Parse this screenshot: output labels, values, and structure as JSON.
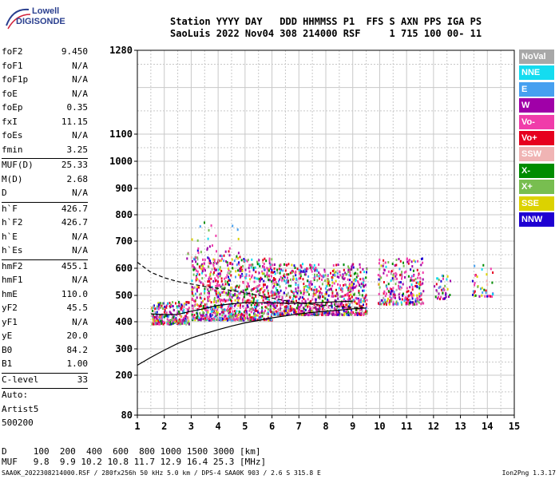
{
  "logo": {
    "line1": "Lowell",
    "line2": "DIGISONDE",
    "color": "#2a3f8f"
  },
  "header": {
    "line1": "Station YYYY DAY   DDD HHMMSS P1  FFS S AXN PPS IGA PS",
    "line2": "SaoLuis 2022 Nov04 308 214000 RSF     1 715 100 00- 11"
  },
  "params": [
    {
      "k": "foF2",
      "v": "9.450"
    },
    {
      "k": "foF1",
      "v": "N/A"
    },
    {
      "k": "foF1p",
      "v": "N/A"
    },
    {
      "k": "foE",
      "v": "N/A"
    },
    {
      "k": "foEp",
      "v": "0.35"
    },
    {
      "k": "fxI",
      "v": "11.15"
    },
    {
      "k": "foEs",
      "v": "N/A"
    },
    {
      "k": "fmin",
      "v": "3.25"
    },
    {
      "k": "MUF(D)",
      "v": "25.33"
    },
    {
      "k": "M(D)",
      "v": "2.68"
    },
    {
      "k": "D",
      "v": "N/A"
    },
    {
      "k": "h`F",
      "v": "426.7"
    },
    {
      "k": "h`F2",
      "v": "426.7"
    },
    {
      "k": "h`E",
      "v": "N/A"
    },
    {
      "k": "h`Es",
      "v": "N/A"
    },
    {
      "k": "hmF2",
      "v": "455.1"
    },
    {
      "k": "hmF1",
      "v": "N/A"
    },
    {
      "k": "hmE",
      "v": "110.0"
    },
    {
      "k": "yF2",
      "v": "45.5"
    },
    {
      "k": "yF1",
      "v": "N/A"
    },
    {
      "k": "yE",
      "v": "20.0"
    },
    {
      "k": "B0",
      "v": "84.2"
    },
    {
      "k": "B1",
      "v": "1.00"
    },
    {
      "k": "C-level",
      "v": "33"
    }
  ],
  "autoscale": {
    "line1": "Auto:",
    "line2": "Artist5",
    "line3": "500200"
  },
  "legend": [
    {
      "label": "NoVal",
      "color": "#a8a8a8"
    },
    {
      "label": "NNE",
      "color": "#14dcf0"
    },
    {
      "label": "E",
      "color": "#46a0f0"
    },
    {
      "label": "W",
      "color": "#a000a8"
    },
    {
      "label": "Vo-",
      "color": "#f03caa"
    },
    {
      "label": "Vo+",
      "color": "#e6001e"
    },
    {
      "label": "SSW",
      "color": "#f0b4b4"
    },
    {
      "label": "X-",
      "color": "#008c00"
    },
    {
      "label": "X+",
      "color": "#78be50"
    },
    {
      "label": "SSE",
      "color": "#dcd200"
    },
    {
      "label": "NNW",
      "color": "#1e00d2"
    }
  ],
  "chart_data": {
    "type": "scatter",
    "title": "",
    "xlabel": "",
    "ylabel": "",
    "xlim": [
      1,
      15
    ],
    "ylim": [
      80,
      1280
    ],
    "x_ticks": [
      1,
      2,
      3,
      4,
      5,
      6,
      7,
      8,
      9,
      10,
      11,
      12,
      13,
      14,
      15
    ],
    "y_ticks": [
      80,
      200,
      300,
      400,
      500,
      600,
      700,
      800,
      900,
      1000,
      1100,
      1280
    ],
    "grid": true,
    "series": [
      {
        "name": "",
        "x": [
          1.0,
          1.5,
          2.0,
          2.5,
          3.0,
          3.5,
          4.0,
          4.5,
          5.0,
          5.5,
          6.0,
          6.5,
          7.0,
          7.5,
          8.0,
          8.5,
          9.0,
          9.5
        ],
        "y": [
          622,
          585,
          565,
          551,
          542,
          533,
          526,
          518,
          510,
          500,
          490,
          480,
          472,
          466,
          462,
          458,
          455,
          452
        ]
      },
      {
        "name": "",
        "x": [
          1.0,
          1.5,
          2.0,
          2.5,
          3.0,
          3.5,
          4.0,
          4.5,
          5.0,
          5.5,
          6.0,
          6.5,
          7.0,
          7.5,
          8.0,
          8.5,
          9.0,
          9.5
        ],
        "y": [
          238,
          268,
          295,
          320,
          340,
          356,
          371,
          384,
          396,
          405,
          415,
          422,
          430,
          435,
          440,
          444,
          449,
          452
        ]
      },
      {
        "name": "",
        "x": [
          1.5,
          2.0,
          2.5,
          3.0,
          3.5,
          4.0,
          4.5,
          5.0,
          5.5,
          6.0,
          6.5,
          7.0,
          7.5,
          8.0,
          8.5,
          9.0
        ],
        "y": [
          430,
          427,
          428,
          440,
          450,
          462,
          468,
          472,
          472,
          472,
          470,
          470,
          471,
          474,
          476,
          478
        ]
      }
    ],
    "echo_regions": [
      {
        "x_range": [
          1.5,
          2.9
        ],
        "y_range": [
          395,
          480
        ],
        "density": "medium"
      },
      {
        "x_range": [
          3.0,
          6.0
        ],
        "y_range": [
          410,
          640
        ],
        "density": "high"
      },
      {
        "x_range": [
          6.0,
          9.5
        ],
        "y_range": [
          430,
          620
        ],
        "density": "high"
      },
      {
        "x_range": [
          9.9,
          11.6
        ],
        "y_range": [
          470,
          640
        ],
        "density": "medium"
      },
      {
        "x_range": [
          12.0,
          12.6
        ],
        "y_range": [
          490,
          580
        ],
        "density": "low"
      },
      {
        "x_range": [
          13.4,
          14.2
        ],
        "y_range": [
          500,
          620
        ],
        "density": "low"
      },
      {
        "x_range": [
          2.8,
          4.8
        ],
        "y_range": [
          640,
          780
        ],
        "density": "low"
      }
    ]
  },
  "muf_table": {
    "d_label": "D",
    "d_values": [
      "100",
      "200",
      "400",
      "600",
      "800",
      "1000",
      "1500",
      "3000"
    ],
    "d_unit": "[km]",
    "muf_label": "MUF",
    "muf_values": [
      "9.8",
      "9.9",
      "10.2",
      "10.8",
      "11.7",
      "12.9",
      "16.4",
      "25.3"
    ],
    "muf_unit": "[MHz]"
  },
  "footer": {
    "text": "SAA0K_2022308214000.RSF / 280fx256h 50 kHz 5.0 km / DPS-4 SAA0K 903 / 2.6 S 315.8 E",
    "version": "Ion2Png 1.3.17"
  }
}
